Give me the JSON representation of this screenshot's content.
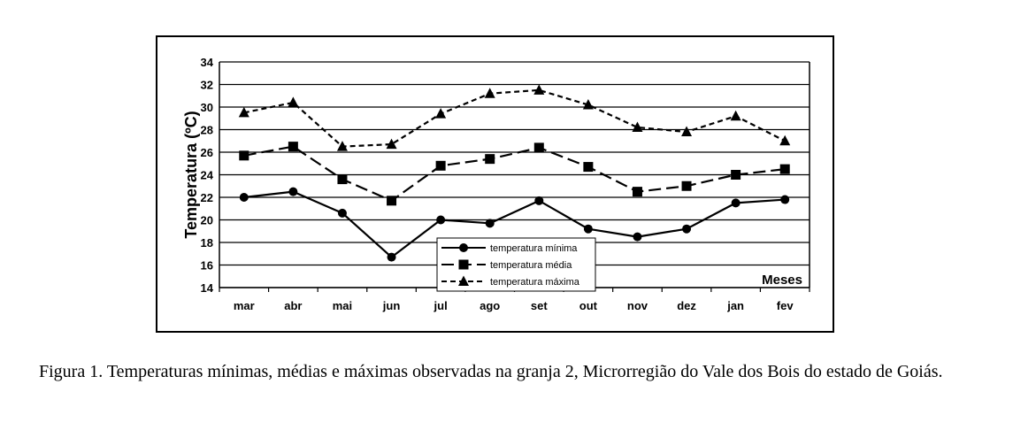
{
  "chart_data": {
    "type": "line",
    "categories": [
      "mar",
      "abr",
      "mai",
      "jun",
      "jul",
      "ago",
      "set",
      "out",
      "nov",
      "dez",
      "jan",
      "fev"
    ],
    "series": [
      {
        "name": "temperatura mínima",
        "marker": "circle",
        "dash": "solid",
        "values": [
          22.0,
          22.5,
          20.6,
          16.7,
          20.0,
          19.7,
          21.7,
          19.2,
          18.5,
          19.2,
          21.5,
          21.8
        ]
      },
      {
        "name": "temperatura média",
        "marker": "square",
        "dash": "long-dash",
        "values": [
          25.7,
          26.5,
          23.6,
          21.7,
          24.8,
          25.4,
          26.4,
          24.7,
          22.5,
          23.0,
          24.0,
          24.5
        ]
      },
      {
        "name": "temperatura máxima",
        "marker": "triangle",
        "dash": "short-dash",
        "values": [
          29.5,
          30.4,
          26.5,
          26.7,
          29.4,
          31.2,
          31.5,
          30.2,
          28.2,
          27.8,
          29.2,
          27.0
        ]
      }
    ],
    "ylabel": "Temperatura (ºC)",
    "xlabel": "Meses",
    "ylim": [
      14,
      34
    ],
    "yticks": [
      14,
      16,
      18,
      20,
      22,
      24,
      26,
      28,
      30,
      32,
      34
    ],
    "grid": true,
    "legend_position": "bottom-center"
  },
  "caption": "Figura 1. Temperaturas mínimas, médias e máximas observadas na granja 2, Microrregião do Vale dos Bois do estado de Goiás."
}
